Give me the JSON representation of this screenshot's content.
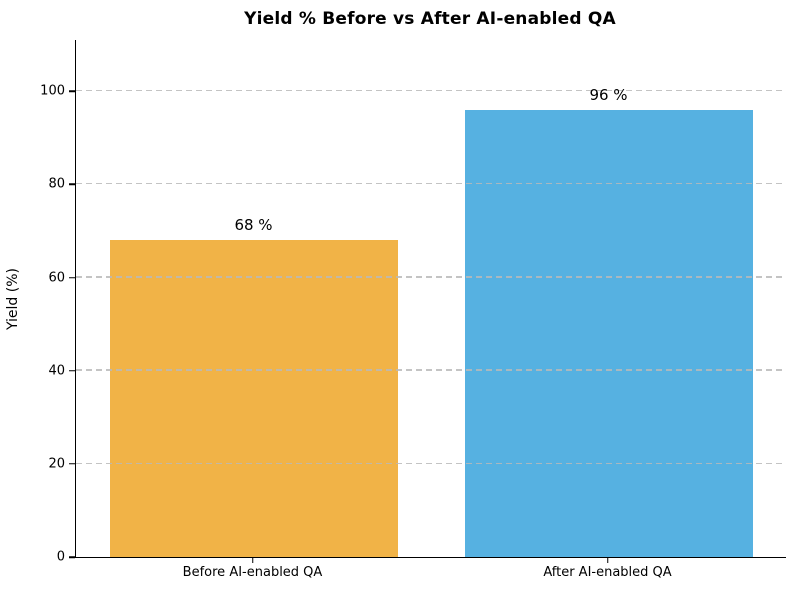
{
  "chart_data": {
    "type": "bar",
    "title": "Yield % Before vs After AI-enabled QA",
    "xlabel": "",
    "ylabel": "Yield (%)",
    "categories": [
      "Before AI-enabled QA",
      "After AI-enabled QA"
    ],
    "values": [
      68,
      96
    ],
    "value_labels": [
      "68 %",
      "96 %"
    ],
    "bar_colors": [
      "#F1B347",
      "#56B1E1"
    ],
    "ylim": [
      0,
      111
    ],
    "yticks": [
      0,
      20,
      40,
      60,
      80,
      100
    ],
    "grid": "horizontal-dashed-over-bars",
    "gridline_color": "#b9b9b9",
    "legend": "none",
    "background_color": "#ffffff",
    "text_color": "#000000"
  }
}
